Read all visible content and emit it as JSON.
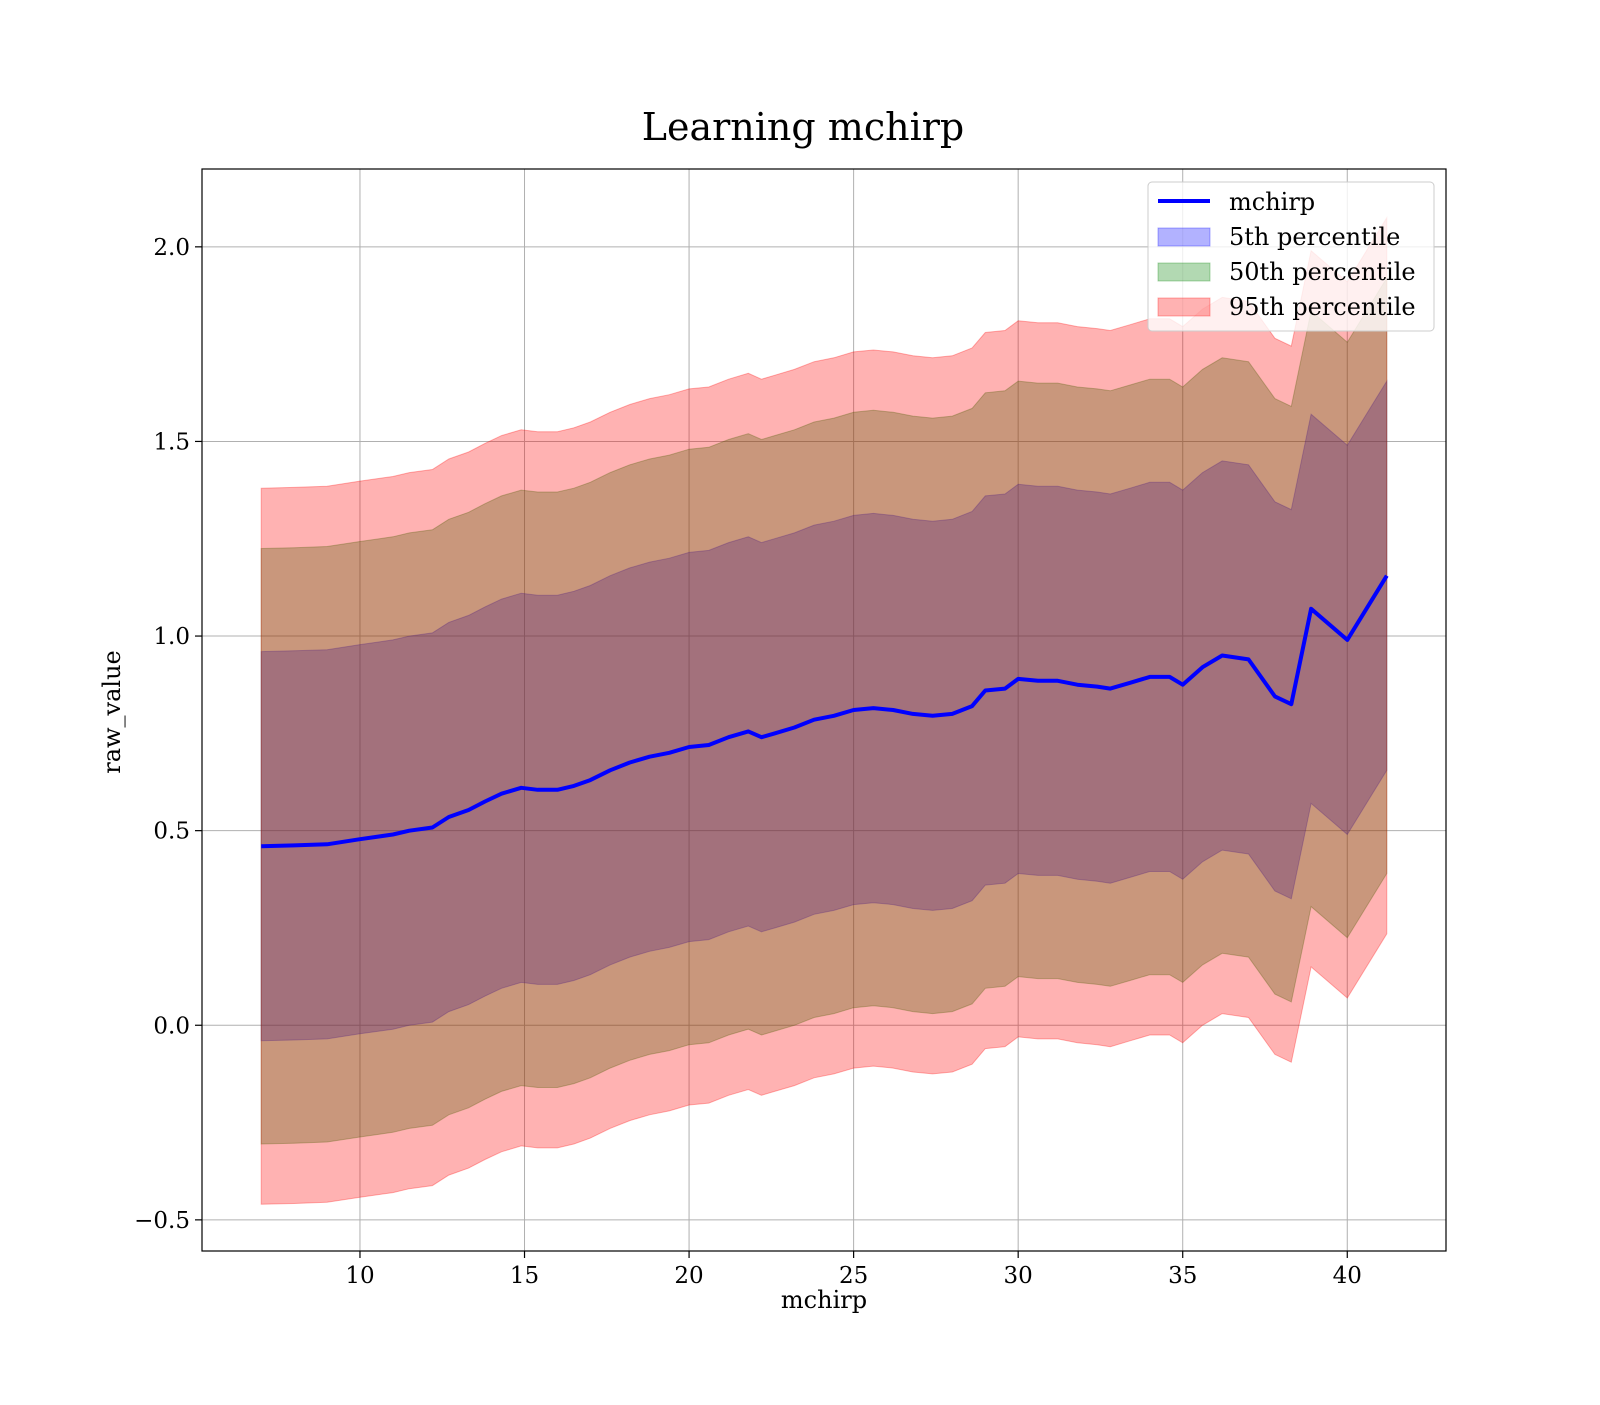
{
  "chart_data": {
    "type": "line",
    "title": "Learning mchirp",
    "xlabel": "mchirp",
    "ylabel": "raw_value",
    "xlim": [
      5.2,
      43.0
    ],
    "ylim": [
      -0.58,
      2.2
    ],
    "xticks": [
      10,
      15,
      20,
      25,
      30,
      35,
      40
    ],
    "xtick_labels": [
      "10",
      "15",
      "20",
      "25",
      "30",
      "35",
      "40"
    ],
    "yticks": [
      -0.5,
      0.0,
      0.5,
      1.0,
      1.5,
      2.0
    ],
    "ytick_labels": [
      "−0.5",
      "0.0",
      "0.5",
      "1.0",
      "1.5",
      "2.0"
    ],
    "grid": true,
    "legend_position": "top-right",
    "legend": [
      "mchirp",
      "5th percentile",
      "50th percentile",
      "95th percentile"
    ],
    "colors": {
      "line": "#0000ff",
      "band_5th": "#0000ff",
      "band_50th": "#008000",
      "band_95th": "#ff0000"
    },
    "x": [
      7.0,
      8.0,
      9.0,
      10.0,
      11.0,
      11.5,
      12.2,
      12.7,
      13.3,
      13.8,
      14.3,
      14.9,
      15.4,
      16.0,
      16.5,
      17.0,
      17.6,
      18.2,
      18.8,
      19.4,
      20.0,
      20.6,
      21.2,
      21.8,
      22.2,
      22.6,
      23.2,
      23.8,
      24.4,
      25.0,
      25.6,
      26.2,
      26.8,
      27.4,
      28.0,
      28.6,
      29.0,
      29.6,
      30.0,
      30.6,
      31.2,
      31.8,
      32.4,
      32.8,
      33.4,
      34.0,
      34.6,
      35.0,
      35.6,
      36.2,
      37.0,
      37.8,
      38.3,
      38.9,
      40.0,
      41.2
    ],
    "series": [
      {
        "name": "mchirp",
        "values": [
          0.46,
          0.462,
          0.465,
          0.478,
          0.49,
          0.5,
          0.508,
          0.535,
          0.553,
          0.575,
          0.595,
          0.61,
          0.605,
          0.605,
          0.615,
          0.63,
          0.655,
          0.675,
          0.69,
          0.7,
          0.715,
          0.72,
          0.74,
          0.755,
          0.74,
          0.75,
          0.765,
          0.785,
          0.795,
          0.81,
          0.815,
          0.81,
          0.8,
          0.795,
          0.8,
          0.82,
          0.86,
          0.865,
          0.89,
          0.885,
          0.885,
          0.875,
          0.87,
          0.865,
          0.88,
          0.895,
          0.895,
          0.875,
          0.92,
          0.95,
          0.94,
          0.845,
          0.825,
          1.07,
          0.99,
          1.155
        ]
      },
      {
        "name": "5th percentile",
        "values": [
          0.46,
          0.462,
          0.465,
          0.478,
          0.49,
          0.5,
          0.508,
          0.535,
          0.553,
          0.575,
          0.595,
          0.61,
          0.605,
          0.605,
          0.615,
          0.63,
          0.655,
          0.675,
          0.69,
          0.7,
          0.715,
          0.72,
          0.74,
          0.755,
          0.74,
          0.75,
          0.765,
          0.785,
          0.795,
          0.81,
          0.815,
          0.81,
          0.8,
          0.795,
          0.8,
          0.82,
          0.86,
          0.865,
          0.89,
          0.885,
          0.885,
          0.875,
          0.87,
          0.865,
          0.88,
          0.895,
          0.895,
          0.875,
          0.92,
          0.95,
          0.94,
          0.845,
          0.825,
          1.07,
          0.99,
          1.155
        ],
        "half_width": 0.5
      },
      {
        "name": "50th percentile",
        "values": [
          0.46,
          0.462,
          0.465,
          0.478,
          0.49,
          0.5,
          0.508,
          0.535,
          0.553,
          0.575,
          0.595,
          0.61,
          0.605,
          0.605,
          0.615,
          0.63,
          0.655,
          0.675,
          0.69,
          0.7,
          0.715,
          0.72,
          0.74,
          0.755,
          0.74,
          0.75,
          0.765,
          0.785,
          0.795,
          0.81,
          0.815,
          0.81,
          0.8,
          0.795,
          0.8,
          0.82,
          0.86,
          0.865,
          0.89,
          0.885,
          0.885,
          0.875,
          0.87,
          0.865,
          0.88,
          0.895,
          0.895,
          0.875,
          0.92,
          0.95,
          0.94,
          0.845,
          0.825,
          1.07,
          0.99,
          1.155
        ],
        "half_width": 0.765
      },
      {
        "name": "95th percentile",
        "values": [
          0.46,
          0.462,
          0.465,
          0.478,
          0.49,
          0.5,
          0.508,
          0.535,
          0.553,
          0.575,
          0.595,
          0.61,
          0.605,
          0.605,
          0.615,
          0.63,
          0.655,
          0.675,
          0.69,
          0.7,
          0.715,
          0.72,
          0.74,
          0.755,
          0.74,
          0.75,
          0.765,
          0.785,
          0.795,
          0.81,
          0.815,
          0.81,
          0.8,
          0.795,
          0.8,
          0.82,
          0.86,
          0.865,
          0.89,
          0.885,
          0.885,
          0.875,
          0.87,
          0.865,
          0.88,
          0.895,
          0.895,
          0.875,
          0.92,
          0.95,
          0.94,
          0.845,
          0.825,
          1.07,
          0.99,
          1.155
        ],
        "half_width": 0.92
      }
    ]
  }
}
